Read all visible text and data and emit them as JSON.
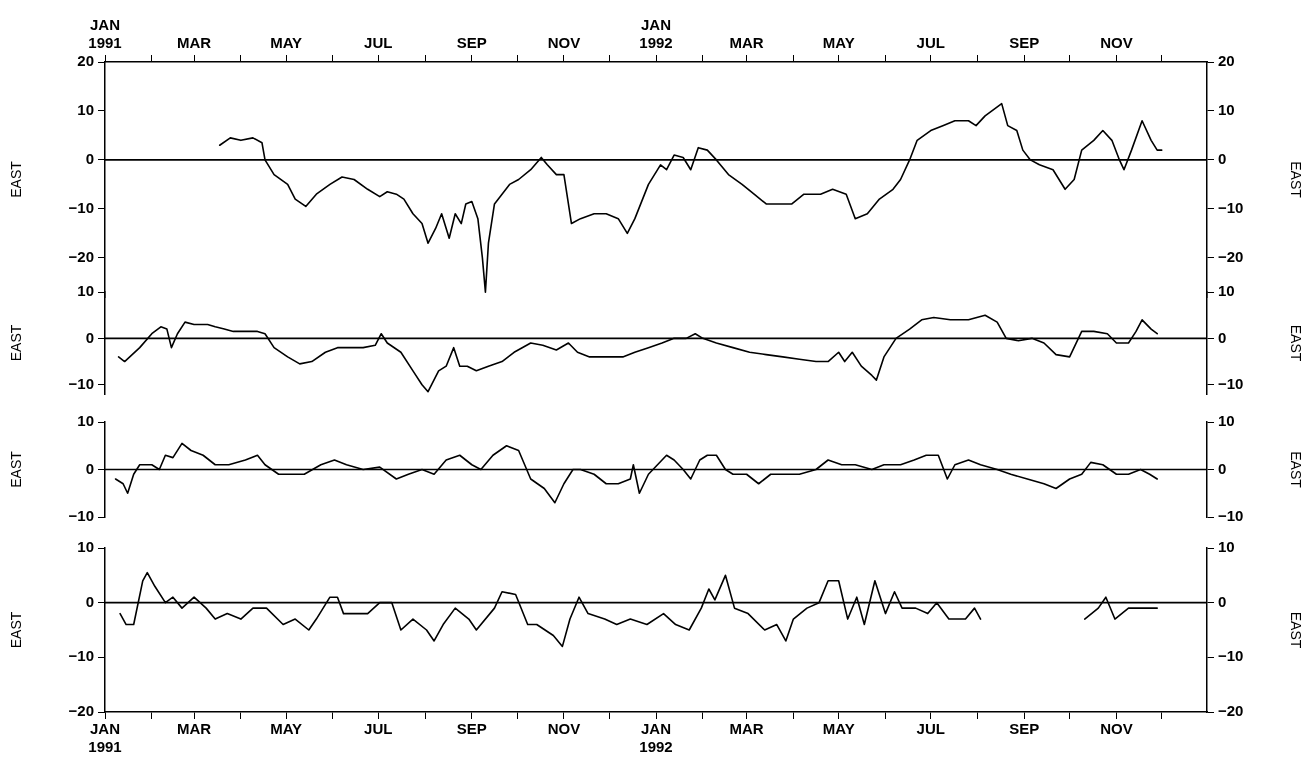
{
  "chart_data": [
    {
      "type": "line",
      "ylabel": "EAST",
      "y2label": "EAST",
      "xlim": [
        "1991-01-01",
        "1992-12-31"
      ],
      "x2lim": [
        "1991-01-01",
        "1992-12-31"
      ],
      "x2ticks": [
        {
          "value": "1991-01-01",
          "label": "JAN\n1991"
        },
        {
          "value": "1991-02-01",
          "label": null
        },
        {
          "value": "1991-03-01",
          "label": "MAR"
        },
        {
          "value": "1991-04-01",
          "label": null
        },
        {
          "value": "1991-05-01",
          "label": "MAY"
        },
        {
          "value": "1991-06-01",
          "label": null
        },
        {
          "value": "1991-07-01",
          "label": "JUL"
        },
        {
          "value": "1991-08-01",
          "label": null
        },
        {
          "value": "1991-09-01",
          "label": "SEP"
        },
        {
          "value": "1991-10-01",
          "label": null
        },
        {
          "value": "1991-11-01",
          "label": "NOV"
        },
        {
          "value": "1991-12-01",
          "label": null
        },
        {
          "value": "1992-01-01",
          "label": "JAN\n1992"
        },
        {
          "value": "1992-02-01",
          "label": null
        },
        {
          "value": "1992-03-01",
          "label": "MAR"
        },
        {
          "value": "1992-04-01",
          "label": null
        },
        {
          "value": "1992-05-01",
          "label": "MAY"
        },
        {
          "value": "1992-06-01",
          "label": null
        },
        {
          "value": "1992-07-01",
          "label": "JUL"
        },
        {
          "value": "1992-08-01",
          "label": null
        },
        {
          "value": "1992-09-01",
          "label": "SEP"
        },
        {
          "value": "1992-10-01",
          "label": null
        },
        {
          "value": "1992-11-01",
          "label": "NOV"
        },
        {
          "value": "1992-12-01",
          "label": null
        }
      ],
      "ylim": [
        -28,
        20
      ],
      "yticks": [
        -20,
        -10,
        0,
        10,
        20
      ],
      "y2lim": [
        -28,
        20
      ],
      "y2ticks": [
        -20,
        -10,
        0,
        10,
        20
      ],
      "tick_labels": "y",
      "ref_lines": [
        {
          "axis": "y",
          "value": 0,
          "color": "#000000"
        }
      ],
      "series": [
        {
          "color": "#000000",
          "x": [
            "1991-03-18",
            "1991-03-25",
            "1991-04-01",
            "1991-04-09",
            "1991-04-15",
            "1991-04-17",
            "1991-04-23",
            "1991-05-02",
            "1991-05-07",
            "1991-05-14",
            "1991-05-21",
            "1991-05-30",
            "1991-06-07",
            "1991-06-15",
            "1991-06-24",
            "1991-07-02",
            "1991-07-07",
            "1991-07-13",
            "1991-07-18",
            "1991-07-24",
            "1991-07-30",
            "1991-08-03",
            "1991-08-08",
            "1991-08-12",
            "1991-08-17",
            "1991-08-21",
            "1991-08-25",
            "1991-08-28",
            "1991-09-01",
            "1991-09-05",
            "1991-09-08",
            "1991-09-10",
            "1991-09-12",
            "1991-09-16",
            "1991-09-21",
            "1991-09-26",
            "1991-10-02",
            "1991-10-10",
            "1991-10-17",
            "1991-10-21",
            "1991-10-27",
            "1991-11-01",
            "1991-11-06",
            "1991-11-12",
            "1991-11-21",
            "1991-11-29",
            "1991-12-07",
            "1991-12-13",
            "1991-12-18",
            "1991-12-27",
            "1992-01-04",
            "1992-01-08",
            "1992-01-13",
            "1992-01-19",
            "1992-01-24",
            "1992-01-29",
            "1992-02-04",
            "1992-02-10",
            "1992-02-18",
            "1992-02-27",
            "1992-03-06",
            "1992-03-14",
            "1992-03-23",
            "1992-03-31",
            "1992-04-08",
            "1992-04-19",
            "1992-04-27",
            "1992-05-06",
            "1992-05-12",
            "1992-05-20",
            "1992-05-28",
            "1992-06-06",
            "1992-06-11",
            "1992-06-17",
            "1992-06-22",
            "1992-07-01",
            "1992-07-09",
            "1992-07-17",
            "1992-07-26",
            "1992-07-31",
            "1992-08-06",
            "1992-08-17",
            "1992-08-21",
            "1992-08-27",
            "1992-08-31",
            "1992-09-05",
            "1992-09-11",
            "1992-09-20",
            "1992-09-28",
            "1992-10-04",
            "1992-10-09",
            "1992-10-17",
            "1992-10-23",
            "1992-10-29",
            "1992-11-03",
            "1992-11-06",
            "1992-11-11",
            "1992-11-18",
            "1992-11-24",
            "1992-11-28",
            "1992-12-01"
          ],
          "values": [
            3,
            4.5,
            4,
            4.5,
            3.5,
            0,
            -3,
            -5,
            -8,
            -9.5,
            -7,
            -5,
            -3.5,
            -4,
            -6,
            -7.5,
            -6.5,
            -7,
            -8,
            -11,
            -13,
            -17,
            -14,
            -11,
            -16,
            -11,
            -13,
            -9,
            -8.5,
            -12,
            -20,
            -27,
            -17,
            -9,
            -7,
            -5,
            -4,
            -2,
            0.5,
            -1,
            -3,
            -3,
            -13,
            -12,
            -11,
            -11,
            -12,
            -15,
            -12,
            -5,
            -1,
            -2,
            1,
            0.5,
            -2,
            2.5,
            2,
            0,
            -3,
            -5,
            -7,
            -9,
            -9,
            -9,
            -7,
            -7,
            -6,
            -7,
            -12,
            -11,
            -8,
            -6,
            -4,
            0,
            4,
            6,
            7,
            8,
            8,
            7,
            9,
            11.5,
            7,
            6,
            2,
            0,
            -1,
            -2,
            -6,
            -4,
            2,
            4,
            6,
            4,
            0,
            -2,
            2,
            8,
            4,
            2,
            2
          ]
        }
      ]
    },
    {
      "type": "line",
      "ylabel": "EAST",
      "y2label": "EAST",
      "xlim": [
        "1991-01-01",
        "1992-12-31"
      ],
      "ylim": [
        -12,
        10
      ],
      "yticks": [
        -10,
        0,
        10
      ],
      "y2lim": [
        -12,
        10
      ],
      "y2ticks": [
        -10,
        0,
        10
      ],
      "tick_labels": "y",
      "ref_lines": [
        {
          "axis": "y",
          "value": 0,
          "color": "#000000"
        }
      ],
      "series": [
        {
          "color": "#000000",
          "x": [
            "1991-01-10",
            "1991-01-14",
            "1991-01-24",
            "1991-02-01",
            "1991-02-07",
            "1991-02-11",
            "1991-02-14",
            "1991-02-18",
            "1991-02-23",
            "1991-03-01",
            "1991-03-10",
            "1991-03-15",
            "1991-03-21",
            "1991-03-27",
            "1991-04-04",
            "1991-04-12",
            "1991-04-17",
            "1991-04-23",
            "1991-05-02",
            "1991-05-10",
            "1991-05-18",
            "1991-05-27",
            "1991-06-04",
            "1991-06-12",
            "1991-06-21",
            "1991-06-29",
            "1991-07-03",
            "1991-07-07",
            "1991-07-16",
            "1991-07-24",
            "1991-07-30",
            "1991-08-03",
            "1991-08-10",
            "1991-08-15",
            "1991-08-20",
            "1991-08-24",
            "1991-08-29",
            "1991-09-04",
            "1991-09-12",
            "1991-09-21",
            "1991-09-29",
            "1991-10-10",
            "1991-10-18",
            "1991-10-27",
            "1991-11-04",
            "1991-11-10",
            "1991-11-18",
            "1991-11-29",
            "1991-12-10",
            "1991-12-18",
            "1991-12-27",
            "1992-01-05",
            "1992-01-13",
            "1992-01-21",
            "1992-01-27",
            "1992-02-01",
            "1992-02-10",
            "1992-02-21",
            "1992-03-03",
            "1992-03-14",
            "1992-03-25",
            "1992-04-05",
            "1992-04-16",
            "1992-04-24",
            "1992-05-01",
            "1992-05-05",
            "1992-05-10",
            "1992-05-16",
            "1992-05-23",
            "1992-05-26",
            "1992-05-31",
            "1992-06-08",
            "1992-06-17",
            "1992-06-25",
            "1992-07-03",
            "1992-07-14",
            "1992-07-26",
            "1992-08-06",
            "1992-08-14",
            "1992-08-20",
            "1992-08-28",
            "1992-09-06",
            "1992-09-14",
            "1992-09-22",
            "1992-10-01",
            "1992-10-09",
            "1992-10-17",
            "1992-10-26",
            "1992-11-01",
            "1992-11-09",
            "1992-11-14",
            "1992-11-18",
            "1992-11-24",
            "1992-11-28"
          ],
          "values": [
            -4,
            -5,
            -2,
            1,
            2.5,
            2,
            -2,
            1,
            3.5,
            3,
            3,
            2.5,
            2,
            1.5,
            1.5,
            1.5,
            1,
            -2,
            -4,
            -5.5,
            -5,
            -3,
            -2,
            -2,
            -2,
            -1.5,
            1,
            -1,
            -3,
            -7,
            -10,
            -11.5,
            -7,
            -6,
            -2,
            -6,
            -6,
            -7,
            -6,
            -5,
            -3,
            -1,
            -1.5,
            -2.5,
            -1,
            -3,
            -4,
            -4,
            -4,
            -3,
            -2,
            -1,
            0,
            0,
            1,
            0,
            -1,
            -2,
            -3,
            -3.5,
            -4,
            -4.5,
            -5,
            -5,
            -3,
            -5,
            -3,
            -6,
            -8,
            -9,
            -4,
            0,
            2,
            4,
            4.5,
            4,
            4,
            5,
            3.5,
            0,
            -0.5,
            0,
            -1,
            -3.5,
            -4,
            1.5,
            1.5,
            1,
            -1,
            -1,
            1.5,
            4,
            2,
            1
          ]
        }
      ]
    },
    {
      "type": "line",
      "ylabel": "EAST",
      "y2label": "EAST",
      "xlim": [
        "1991-01-01",
        "1992-12-31"
      ],
      "ylim": [
        -10,
        10
      ],
      "yticks": [
        -10,
        0,
        10
      ],
      "y2lim": [
        -10,
        10
      ],
      "y2ticks": [
        -10,
        0,
        10
      ],
      "tick_labels": "y",
      "ref_lines": [
        {
          "axis": "y",
          "value": 0,
          "color": "#000000"
        }
      ],
      "series": [
        {
          "color": "#000000",
          "x": [
            "1991-01-08",
            "1991-01-13",
            "1991-01-16",
            "1991-01-20",
            "1991-01-24",
            "1991-02-01",
            "1991-02-06",
            "1991-02-10",
            "1991-02-15",
            "1991-02-21",
            "1991-02-27",
            "1991-03-07",
            "1991-03-15",
            "1991-03-24",
            "1991-04-04",
            "1991-04-12",
            "1991-04-17",
            "1991-04-26",
            "1991-05-04",
            "1991-05-13",
            "1991-05-24",
            "1991-06-02",
            "1991-06-10",
            "1991-06-21",
            "1991-07-02",
            "1991-07-13",
            "1991-07-21",
            "1991-07-30",
            "1991-08-07",
            "1991-08-15",
            "1991-08-24",
            "1991-09-01",
            "1991-09-07",
            "1991-09-15",
            "1991-09-24",
            "1991-10-02",
            "1991-10-10",
            "1991-10-19",
            "1991-10-26",
            "1991-11-01",
            "1991-11-07",
            "1991-11-12",
            "1991-11-21",
            "1991-11-29",
            "1991-12-07",
            "1991-12-15",
            "1991-12-17",
            "1991-12-21",
            "1991-12-27",
            "1992-01-02",
            "1992-01-08",
            "1992-01-13",
            "1992-01-19",
            "1992-01-24",
            "1992-01-30",
            "1992-02-04",
            "1992-02-10",
            "1992-02-16",
            "1992-02-21",
            "1992-03-01",
            "1992-03-09",
            "1992-03-17",
            "1992-03-26",
            "1992-04-05",
            "1992-04-16",
            "1992-04-24",
            "1992-05-03",
            "1992-05-12",
            "1992-05-23",
            "1992-05-31",
            "1992-06-11",
            "1992-06-20",
            "1992-06-28",
            "1992-07-06",
            "1992-07-12",
            "1992-07-17",
            "1992-07-26",
            "1992-08-03",
            "1992-08-14",
            "1992-08-23",
            "1992-09-03",
            "1992-09-14",
            "1992-09-22",
            "1992-10-01",
            "1992-10-09",
            "1992-10-15",
            "1992-10-23",
            "1992-11-01",
            "1992-11-09",
            "1992-11-17",
            "1992-11-23",
            "1992-11-28"
          ],
          "values": [
            -2,
            -3,
            -5,
            -1,
            1,
            1,
            0,
            3,
            2.5,
            5.5,
            4,
            3,
            1,
            1,
            2,
            3,
            1,
            -1,
            -1,
            -1,
            1,
            2,
            1,
            0,
            0.5,
            -2,
            -1,
            0,
            -1,
            2,
            3,
            1,
            0,
            3,
            5,
            4,
            -2,
            -4,
            -7,
            -3,
            0,
            0,
            -1,
            -3,
            -3,
            -2,
            1,
            -5,
            -1,
            1,
            3,
            2,
            0,
            -2,
            2,
            3,
            3,
            0,
            -1,
            -1,
            -3,
            -1,
            -1,
            -1,
            0,
            2,
            1,
            1,
            0,
            1,
            1,
            2,
            3,
            3,
            -2,
            1,
            2,
            1,
            0,
            -1,
            -2,
            -3,
            -4,
            -2,
            -1,
            1.5,
            1,
            -1,
            -1,
            0,
            -1,
            -2
          ]
        }
      ]
    },
    {
      "type": "line",
      "ylabel": "EAST",
      "y2label": "EAST",
      "xlim": [
        "1991-01-01",
        "1992-12-31"
      ],
      "xticks": [
        {
          "value": "1991-01-01",
          "label": "JAN\n1991"
        },
        {
          "value": "1991-02-01",
          "label": null
        },
        {
          "value": "1991-03-01",
          "label": "MAR"
        },
        {
          "value": "1991-04-01",
          "label": null
        },
        {
          "value": "1991-05-01",
          "label": "MAY"
        },
        {
          "value": "1991-06-01",
          "label": null
        },
        {
          "value": "1991-07-01",
          "label": "JUL"
        },
        {
          "value": "1991-08-01",
          "label": null
        },
        {
          "value": "1991-09-01",
          "label": "SEP"
        },
        {
          "value": "1991-10-01",
          "label": null
        },
        {
          "value": "1991-11-01",
          "label": "NOV"
        },
        {
          "value": "1991-12-01",
          "label": null
        },
        {
          "value": "1992-01-01",
          "label": "JAN\n1992"
        },
        {
          "value": "1992-02-01",
          "label": null
        },
        {
          "value": "1992-03-01",
          "label": "MAR"
        },
        {
          "value": "1992-04-01",
          "label": null
        },
        {
          "value": "1992-05-01",
          "label": "MAY"
        },
        {
          "value": "1992-06-01",
          "label": null
        },
        {
          "value": "1992-07-01",
          "label": "JUL"
        },
        {
          "value": "1992-08-01",
          "label": null
        },
        {
          "value": "1992-09-01",
          "label": "SEP"
        },
        {
          "value": "1992-10-01",
          "label": null
        },
        {
          "value": "1992-11-01",
          "label": "NOV"
        },
        {
          "value": "1992-12-01",
          "label": null
        }
      ],
      "ylim": [
        -20,
        10
      ],
      "yticks": [
        -20,
        -10,
        0,
        10
      ],
      "y2lim": [
        -20,
        10
      ],
      "y2ticks": [
        -20,
        -10,
        0,
        10
      ],
      "ref_lines": [
        {
          "axis": "y",
          "value": 0,
          "color": "#000000"
        }
      ],
      "series": [
        {
          "color": "#000000",
          "x": [
            "1991-01-11",
            "1991-01-15",
            "1991-01-20",
            "1991-01-26",
            "1991-01-29",
            "1991-02-03",
            "1991-02-10",
            "1991-02-15",
            "1991-02-21",
            "1991-03-01",
            "1991-03-09",
            "1991-03-15",
            "1991-03-23",
            "1991-04-01",
            "1991-04-09",
            "1991-04-18",
            "1991-04-29",
            "1991-05-07",
            "1991-05-16",
            "1991-05-21",
            "1991-05-30",
            "1991-06-04",
            "1991-06-08",
            "1991-06-24",
            "1991-07-02",
            "1991-07-10",
            "1991-07-16",
            "1991-07-24",
            "1991-08-02",
            "1991-08-07",
            "1991-08-13",
            "1991-08-21",
            "1991-08-30",
            "1991-09-04",
            "1991-09-16",
            "1991-09-21",
            "1991-09-30",
            "1991-10-08",
            "1991-10-14",
            "1991-10-25",
            "1991-10-31",
            "1991-11-05",
            "1991-11-11",
            "1991-11-17",
            "1991-11-28",
            "1991-12-06",
            "1991-12-15",
            "1991-12-26",
            "1992-01-06",
            "1992-01-14",
            "1992-01-23",
            "1992-01-31",
            "1992-02-05",
            "1992-02-09",
            "1992-02-16",
            "1992-02-22",
            "1992-03-02",
            "1992-03-13",
            "1992-03-21",
            "1992-03-27",
            "1992-04-01",
            "1992-04-10",
            "1992-04-18",
            "1992-04-24",
            "1992-05-01",
            "1992-05-07",
            "1992-05-13",
            "1992-05-18",
            "1992-05-25",
            "1992-06-01",
            "1992-06-07",
            "1992-06-12",
            "1992-06-21",
            "1992-06-29",
            "1992-07-05",
            "1992-07-13",
            "1992-07-24",
            "1992-07-30",
            "1992-08-03",
            "1992-09-01",
            "1992-10-11",
            "1992-10-20",
            "1992-10-25",
            "1992-10-31",
            "1992-11-09",
            "1992-11-20",
            "1992-11-28"
          ],
          "values": [
            -2,
            -4,
            -4,
            4,
            5.5,
            3,
            0,
            1,
            -1,
            1,
            -1,
            -3,
            -2,
            -3,
            -1,
            -1,
            -4,
            -3,
            -5,
            -3,
            1,
            1,
            -2,
            -2,
            0,
            0,
            -5,
            -3,
            -5,
            -7,
            -4,
            -1,
            -3,
            -5,
            -1,
            2,
            1.5,
            -4,
            -4,
            -6,
            -8,
            -3,
            1,
            -2,
            -3,
            -4,
            -3,
            -4,
            -2,
            -4,
            -5,
            -1,
            2.5,
            0.5,
            5,
            -1,
            -2,
            -5,
            -4,
            -7,
            -3,
            -1,
            0,
            4,
            4,
            -3,
            1,
            -4,
            4,
            -2,
            2,
            -1,
            -1,
            -2,
            0,
            -3,
            -3,
            -1,
            -3,
            null,
            -3,
            -1,
            1,
            -3,
            -1,
            -1,
            -1
          ]
        }
      ]
    }
  ]
}
